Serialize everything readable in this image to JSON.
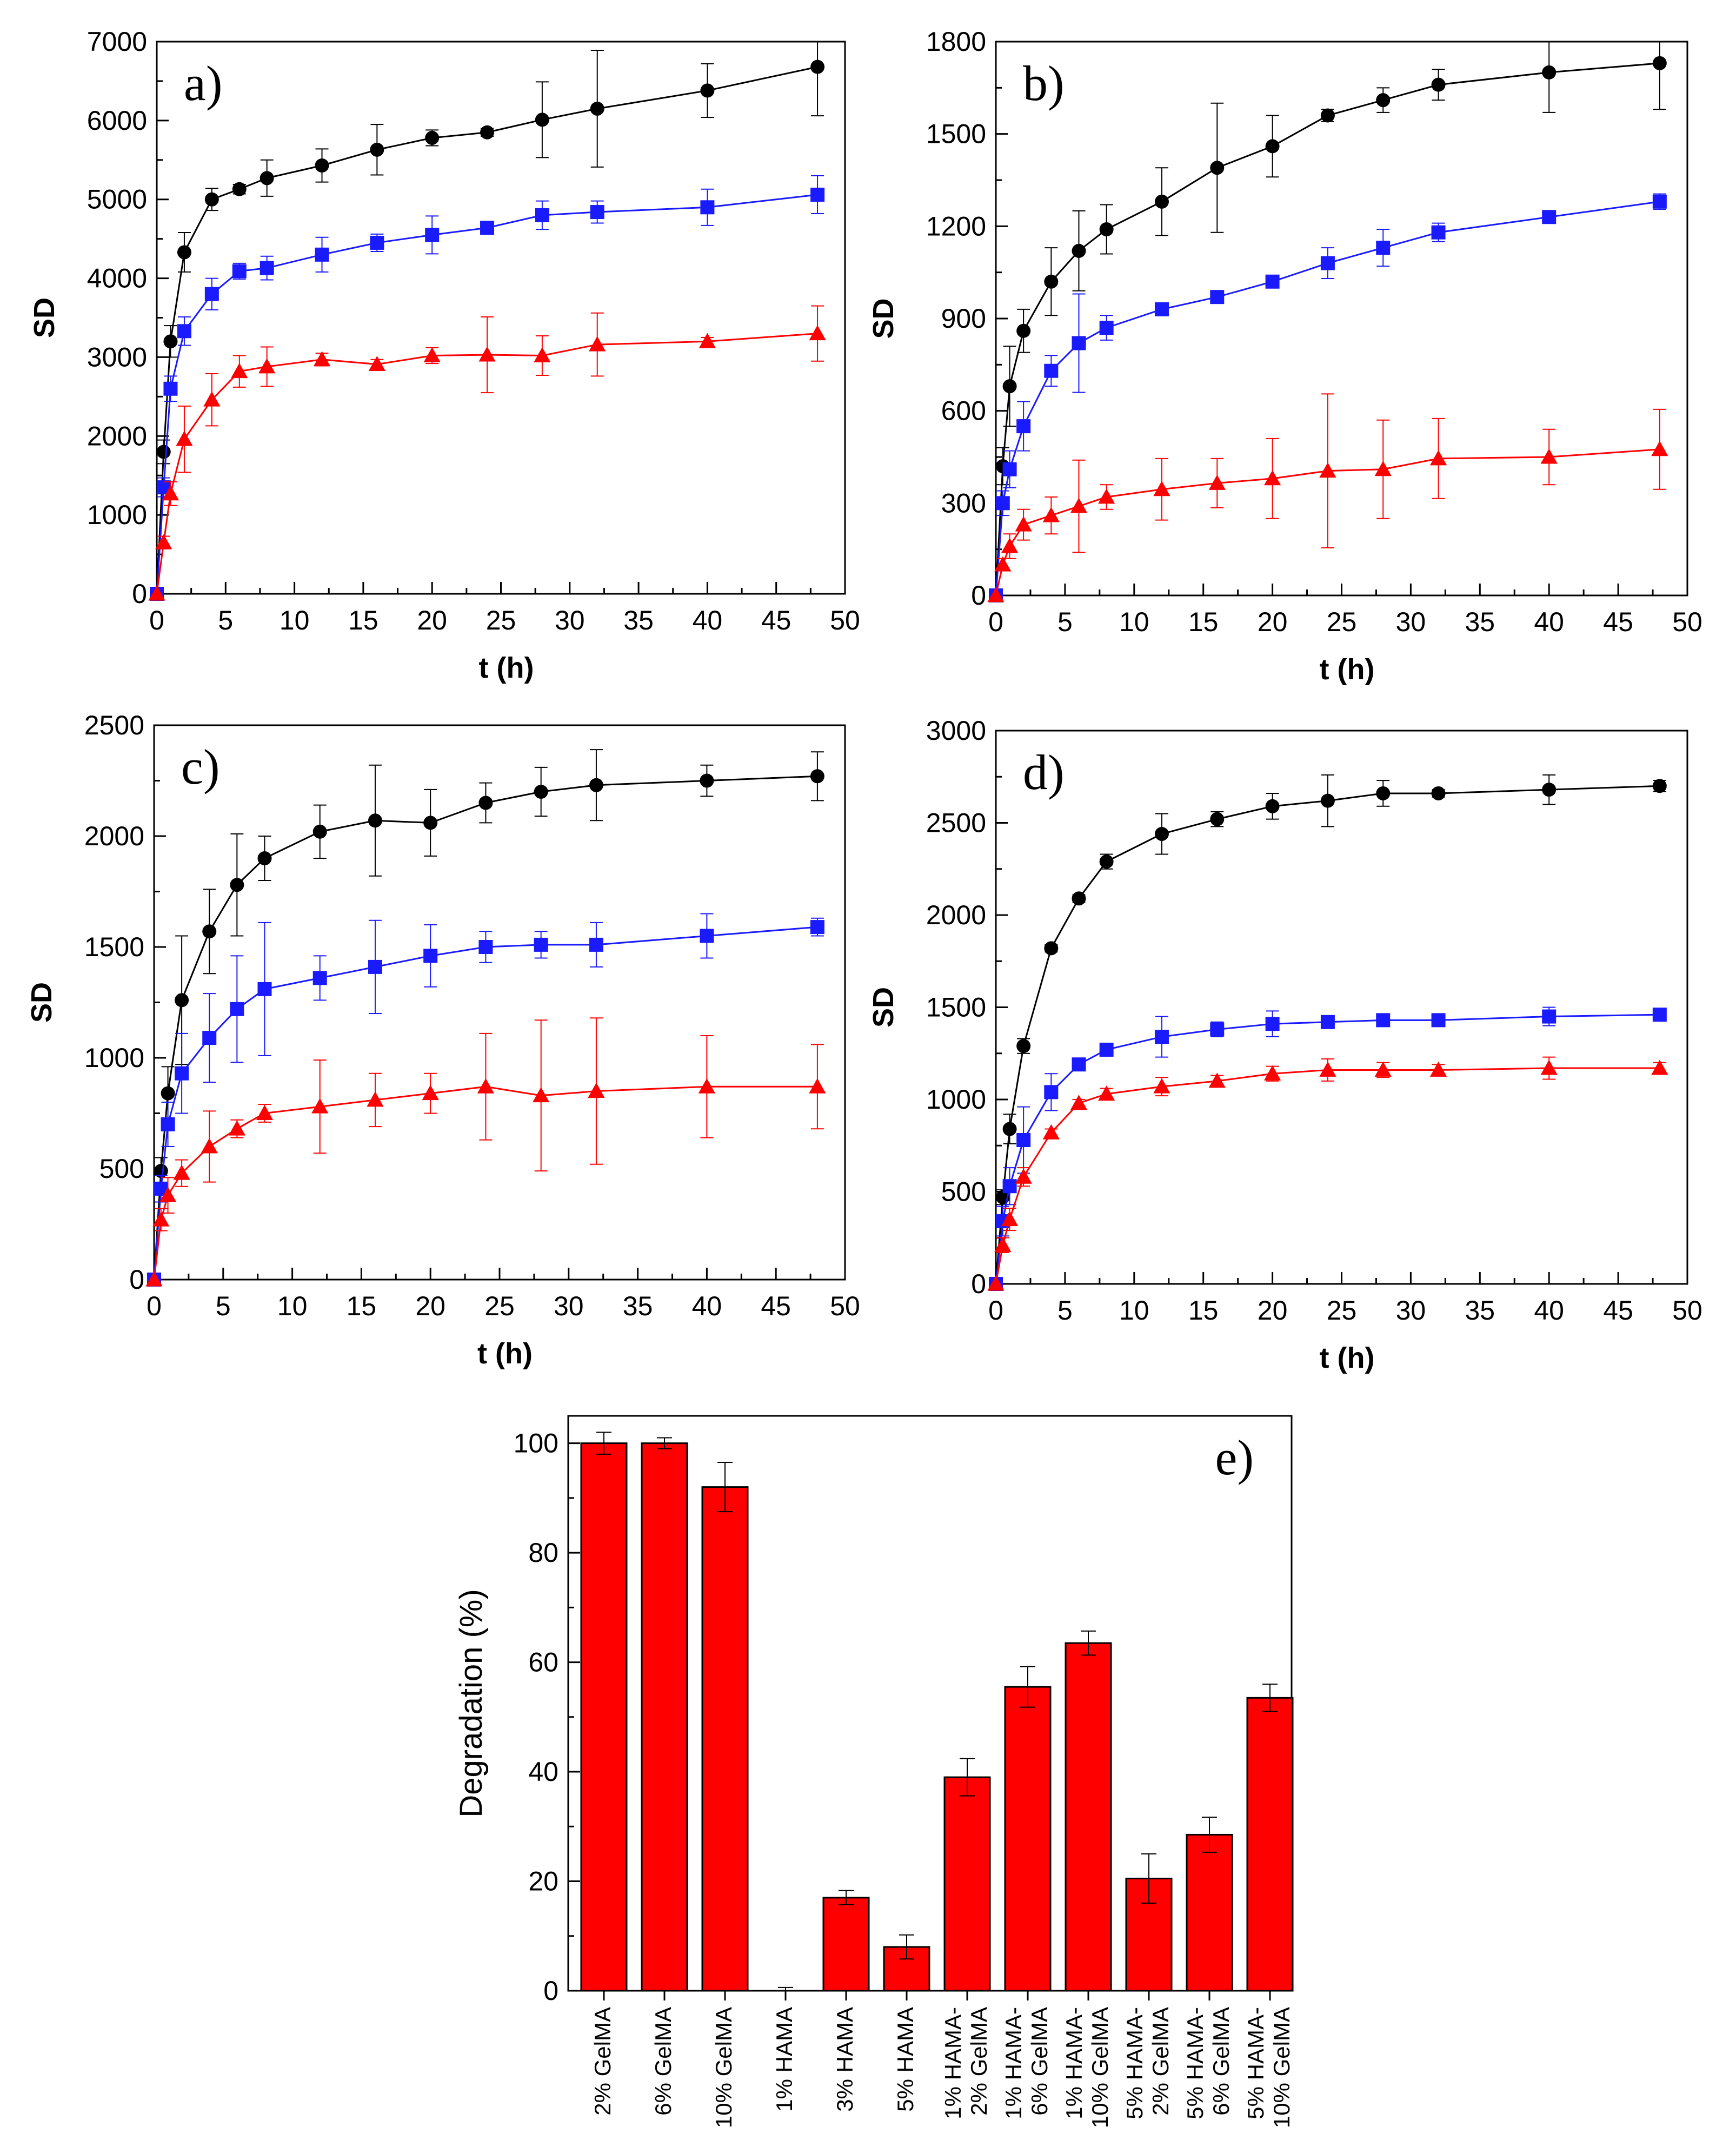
{
  "figure": {
    "colors": {
      "black_series": "#000000",
      "blue_series": "#1a1aff",
      "red_series": "#ff0000",
      "bar_fill": "#ff0000",
      "axis": "#000000"
    }
  },
  "chart_data": [
    {
      "id": "a",
      "type": "line",
      "label": "a)",
      "xlabel": "t (h)",
      "ylabel": "SD",
      "xlim": [
        0,
        50
      ],
      "ylim": [
        0,
        7000
      ],
      "xticks": [
        "0",
        "5",
        "10",
        "15",
        "20",
        "25",
        "30",
        "35",
        "40",
        "45",
        "50"
      ],
      "yticks": [
        "0",
        "1000",
        "2000",
        "3000",
        "4000",
        "5000",
        "6000",
        "7000"
      ],
      "x": [
        0,
        0.5,
        1,
        2,
        4,
        6,
        8,
        12,
        16,
        20,
        24,
        28,
        32,
        40,
        48
      ],
      "series": [
        {
          "name": "black",
          "marker": "circle",
          "color": "#000000",
          "values": [
            0,
            1800,
            3200,
            4330,
            5000,
            5130,
            5270,
            5430,
            5630,
            5780,
            5850,
            6010,
            6150,
            6380,
            6680
          ],
          "errors": [
            0,
            150,
            200,
            250,
            140,
            60,
            230,
            210,
            320,
            100,
            50,
            480,
            740,
            340,
            620
          ]
        },
        {
          "name": "blue",
          "marker": "square",
          "color": "#1a1aff",
          "values": [
            0,
            1350,
            2600,
            3330,
            3800,
            4090,
            4130,
            4300,
            4450,
            4550,
            4640,
            4800,
            4840,
            4900,
            5060
          ],
          "errors": [
            0,
            120,
            160,
            180,
            200,
            100,
            150,
            220,
            110,
            240,
            40,
            180,
            140,
            230,
            240
          ]
        },
        {
          "name": "red",
          "marker": "triangle",
          "color": "#ff0000",
          "values": [
            0,
            650,
            1270,
            1960,
            2460,
            2820,
            2880,
            2970,
            2910,
            3020,
            3030,
            3020,
            3160,
            3200,
            3300
          ],
          "errors": [
            0,
            80,
            150,
            420,
            330,
            200,
            250,
            80,
            60,
            100,
            480,
            250,
            400,
            50,
            350
          ]
        }
      ]
    },
    {
      "id": "b",
      "type": "line",
      "label": "b)",
      "xlabel": "t (h)",
      "ylabel": "SD",
      "xlim": [
        0,
        50
      ],
      "ylim": [
        0,
        1800
      ],
      "xticks": [
        "0",
        "5",
        "10",
        "15",
        "20",
        "25",
        "30",
        "35",
        "40",
        "45",
        "50"
      ],
      "yticks": [
        "0",
        "300",
        "600",
        "900",
        "1200",
        "1500",
        "1800"
      ],
      "x": [
        0,
        0.5,
        1,
        2,
        4,
        6,
        8,
        12,
        16,
        20,
        24,
        28,
        32,
        40,
        48
      ],
      "series": [
        {
          "name": "black",
          "marker": "circle",
          "color": "#000000",
          "values": [
            0,
            420,
            680,
            860,
            1020,
            1120,
            1190,
            1280,
            1390,
            1460,
            1560,
            1610,
            1660,
            1700,
            1730
          ],
          "errors": [
            0,
            60,
            130,
            70,
            110,
            130,
            80,
            110,
            210,
            100,
            20,
            40,
            50,
            130,
            150
          ]
        },
        {
          "name": "blue",
          "marker": "square",
          "color": "#1a1aff",
          "values": [
            0,
            300,
            410,
            550,
            730,
            820,
            870,
            930,
            970,
            1020,
            1080,
            1130,
            1180,
            1230,
            1280
          ],
          "errors": [
            0,
            40,
            60,
            80,
            50,
            160,
            40,
            20,
            10,
            15,
            50,
            60,
            30,
            15,
            25
          ]
        },
        {
          "name": "red",
          "marker": "triangle",
          "color": "#ff0000",
          "values": [
            0,
            100,
            160,
            230,
            260,
            290,
            320,
            345,
            365,
            380,
            405,
            410,
            445,
            450,
            475
          ],
          "errors": [
            0,
            20,
            40,
            50,
            60,
            150,
            40,
            100,
            80,
            130,
            250,
            160,
            130,
            90,
            130
          ]
        }
      ]
    },
    {
      "id": "c",
      "type": "line",
      "label": "c)",
      "xlabel": "t (h)",
      "ylabel": "SD",
      "xlim": [
        0,
        50
      ],
      "ylim": [
        0,
        2500
      ],
      "xticks": [
        "0",
        "5",
        "10",
        "15",
        "20",
        "25",
        "30",
        "35",
        "40",
        "45",
        "50"
      ],
      "yticks": [
        "0",
        "500",
        "1000",
        "1500",
        "2000",
        "2500"
      ],
      "x": [
        0,
        0.5,
        1,
        2,
        4,
        6,
        8,
        12,
        16,
        20,
        24,
        28,
        32,
        40,
        48
      ],
      "series": [
        {
          "name": "black",
          "marker": "circle",
          "color": "#000000",
          "values": [
            0,
            490,
            840,
            1260,
            1570,
            1780,
            1900,
            2020,
            2070,
            2060,
            2150,
            2200,
            2230,
            2250,
            2270
          ],
          "errors": [
            0,
            60,
            120,
            290,
            190,
            230,
            100,
            120,
            250,
            150,
            90,
            110,
            160,
            70,
            110
          ]
        },
        {
          "name": "blue",
          "marker": "square",
          "color": "#1a1aff",
          "values": [
            0,
            410,
            700,
            930,
            1090,
            1220,
            1310,
            1360,
            1410,
            1460,
            1500,
            1510,
            1510,
            1550,
            1590
          ],
          "errors": [
            0,
            60,
            100,
            180,
            200,
            240,
            300,
            100,
            210,
            140,
            70,
            60,
            100,
            100,
            40
          ]
        },
        {
          "name": "red",
          "marker": "triangle",
          "color": "#ff0000",
          "values": [
            0,
            270,
            380,
            480,
            600,
            680,
            750,
            780,
            810,
            840,
            870,
            830,
            850,
            870,
            870
          ],
          "errors": [
            0,
            50,
            80,
            60,
            160,
            40,
            40,
            210,
            120,
            90,
            240,
            340,
            330,
            230,
            190
          ]
        }
      ]
    },
    {
      "id": "d",
      "type": "line",
      "label": "d)",
      "xlabel": "t (h)",
      "ylabel": "SD",
      "xlim": [
        0,
        50
      ],
      "ylim": [
        0,
        3000
      ],
      "xticks": [
        "0",
        "5",
        "10",
        "15",
        "20",
        "25",
        "30",
        "35",
        "40",
        "45",
        "50"
      ],
      "yticks": [
        "0",
        "500",
        "1000",
        "1500",
        "2000",
        "2500",
        "3000"
      ],
      "x": [
        0,
        0.5,
        1,
        2,
        4,
        6,
        8,
        12,
        16,
        20,
        24,
        28,
        32,
        40,
        48
      ],
      "series": [
        {
          "name": "black",
          "marker": "circle",
          "color": "#000000",
          "values": [
            0,
            470,
            840,
            1290,
            1820,
            2090,
            2290,
            2440,
            2520,
            2590,
            2620,
            2660,
            2660,
            2680,
            2700
          ],
          "errors": [
            0,
            40,
            80,
            40,
            20,
            20,
            40,
            110,
            40,
            70,
            140,
            70,
            20,
            80,
            30
          ]
        },
        {
          "name": "blue",
          "marker": "square",
          "color": "#1a1aff",
          "values": [
            0,
            340,
            530,
            780,
            1040,
            1190,
            1270,
            1340,
            1380,
            1410,
            1420,
            1430,
            1430,
            1450,
            1460
          ],
          "errors": [
            0,
            80,
            100,
            180,
            100,
            30,
            30,
            110,
            40,
            70,
            30,
            30,
            30,
            50,
            20
          ]
        },
        {
          "name": "red",
          "marker": "triangle",
          "color": "#ff0000",
          "values": [
            0,
            210,
            350,
            580,
            820,
            980,
            1030,
            1070,
            1100,
            1140,
            1160,
            1160,
            1160,
            1170,
            1170
          ],
          "errors": [
            0,
            40,
            60,
            50,
            20,
            20,
            30,
            50,
            30,
            40,
            60,
            40,
            30,
            60,
            30
          ]
        }
      ]
    },
    {
      "id": "e",
      "type": "bar",
      "label": "e)",
      "ylabel": "Degradation (%)",
      "ylim": [
        0,
        105
      ],
      "yticks": [
        "0",
        "20",
        "40",
        "60",
        "80",
        "100"
      ],
      "categories": [
        [
          "2% GelMA"
        ],
        [
          "6% GelMA"
        ],
        [
          "10% GelMA"
        ],
        [
          "1% HAMA"
        ],
        [
          "3% HAMA"
        ],
        [
          "5% HAMA"
        ],
        [
          "1% HAMA-",
          "2% GelMA"
        ],
        [
          "1% HAMA-",
          "6% GelMA"
        ],
        [
          "1% HAMA-",
          "10% GelMA"
        ],
        [
          "5% HAMA-",
          "2% GelMA"
        ],
        [
          "5% HAMA-",
          "6% GelMA"
        ],
        [
          "5% HAMA-",
          "10% GelMA"
        ]
      ],
      "values": [
        100,
        100,
        92,
        0,
        17,
        8,
        39,
        55.5,
        63.5,
        20.5,
        28.5,
        53.5
      ],
      "errors": [
        2,
        1,
        4.5,
        0.6,
        1.3,
        2.2,
        3.4,
        3.7,
        2.2,
        4.5,
        3.2,
        2.5
      ]
    }
  ]
}
